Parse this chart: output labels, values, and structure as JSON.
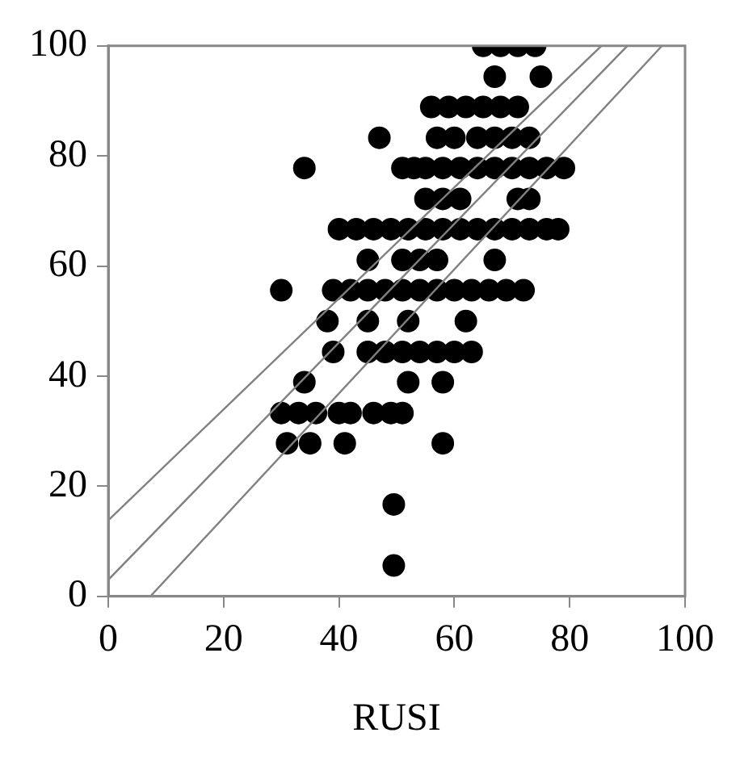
{
  "chart_data": {
    "type": "scatter",
    "xlabel": "RUSI",
    "xlim": [
      0,
      100
    ],
    "ylim": [
      0,
      100
    ],
    "xticks": [
      0,
      20,
      40,
      60,
      80,
      100
    ],
    "yticks": [
      0,
      20,
      40,
      60,
      80,
      100
    ],
    "grid": false,
    "legend": false,
    "marker": "circle",
    "series": [
      {
        "color": "#000000",
        "x": [
          65,
          68,
          71,
          74,
          67,
          75,
          56,
          59,
          62,
          65,
          68,
          71,
          47,
          57,
          60,
          64,
          67,
          70,
          73,
          34,
          51,
          53,
          55,
          58,
          61,
          64,
          67,
          70,
          73,
          76,
          79,
          55,
          58,
          61,
          71,
          73,
          40,
          43,
          46,
          49,
          52,
          55,
          58,
          61,
          64,
          67,
          70,
          73,
          76,
          78,
          45,
          51,
          54,
          57,
          67,
          30,
          39,
          42,
          45,
          48,
          51,
          54,
          57,
          60,
          63,
          66,
          69,
          72,
          38,
          45,
          52,
          62,
          39,
          45,
          48,
          51,
          54,
          57,
          60,
          63,
          34,
          52,
          58,
          30,
          33,
          36,
          40,
          42,
          46,
          49,
          51,
          31,
          35,
          41,
          58,
          49.5,
          49.5
        ],
        "values": [
          100,
          100,
          100,
          100,
          94.4,
          94.4,
          88.9,
          88.9,
          88.9,
          88.9,
          88.9,
          88.9,
          83.3,
          83.3,
          83.3,
          83.3,
          83.3,
          83.3,
          83.3,
          77.8,
          77.8,
          77.8,
          77.8,
          77.8,
          77.8,
          77.8,
          77.8,
          77.8,
          77.8,
          77.8,
          77.8,
          72.2,
          72.2,
          72.2,
          72.2,
          72.2,
          66.7,
          66.7,
          66.7,
          66.7,
          66.7,
          66.7,
          66.7,
          66.7,
          66.7,
          66.7,
          66.7,
          66.7,
          66.7,
          66.7,
          61.1,
          61.1,
          61.1,
          61.1,
          61.1,
          55.6,
          55.6,
          55.6,
          55.6,
          55.6,
          55.6,
          55.6,
          55.6,
          55.6,
          55.6,
          55.6,
          55.6,
          55.6,
          50,
          50,
          50,
          50,
          44.4,
          44.4,
          44.4,
          44.4,
          44.4,
          44.4,
          44.4,
          44.4,
          38.9,
          38.9,
          38.9,
          33.3,
          33.3,
          33.3,
          33.3,
          33.3,
          33.3,
          33.3,
          33.3,
          27.8,
          27.8,
          27.8,
          27.8,
          16.7,
          5.6
        ]
      },
      {
        "type": "line",
        "color": "#808080",
        "marker": "none",
        "x": [
          0,
          85.5
        ],
        "values": [
          13.8,
          100
        ]
      },
      {
        "type": "line",
        "color": "#808080",
        "marker": "none",
        "x": [
          0,
          90
        ],
        "values": [
          3,
          100
        ]
      },
      {
        "type": "line",
        "color": "#808080",
        "marker": "none",
        "x": [
          7.3,
          96
        ],
        "values": [
          0,
          100
        ]
      }
    ]
  }
}
